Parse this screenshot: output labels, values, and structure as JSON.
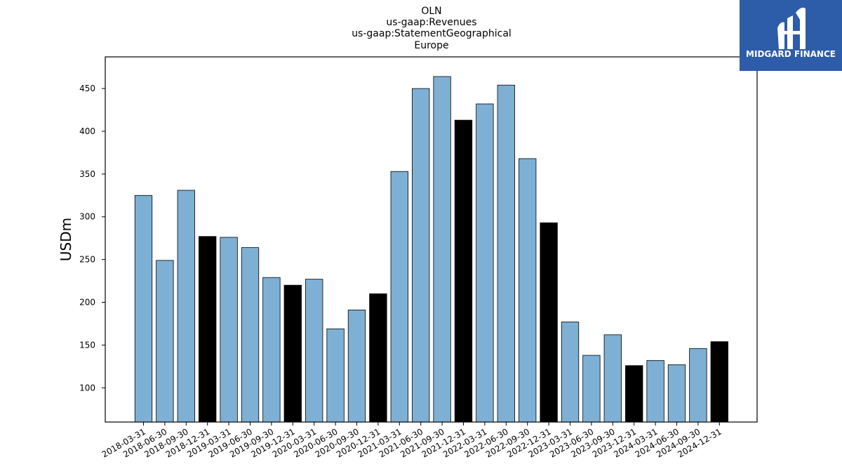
{
  "chart_data": {
    "type": "bar",
    "title_lines": [
      "OLN",
      "us-gaap:Revenues",
      "us-gaap:StatementGeographical",
      "Europe"
    ],
    "ylabel": "USDm",
    "xlabel": "",
    "ylim": [
      60,
      487
    ],
    "yticks": [
      100,
      150,
      200,
      250,
      300,
      350,
      400,
      450
    ],
    "categories": [
      "2018-03-31",
      "2018-06-30",
      "2018-09-30",
      "2018-12-31",
      "2019-03-31",
      "2019-06-30",
      "2019-09-30",
      "2019-12-31",
      "2020-03-31",
      "2020-06-30",
      "2020-09-30",
      "2020-12-31",
      "2021-03-31",
      "2021-06-30",
      "2021-09-30",
      "2021-12-31",
      "2022-03-31",
      "2022-06-30",
      "2022-09-30",
      "2022-12-31",
      "2023-03-31",
      "2023-06-30",
      "2023-09-30",
      "2023-12-31",
      "2024-03-31",
      "2024-06-30",
      "2024-09-30",
      "2024-12-31"
    ],
    "values": [
      325,
      249,
      331,
      277,
      276,
      264,
      229,
      220,
      227,
      169,
      191,
      210,
      353,
      450,
      464,
      413,
      432,
      454,
      368,
      293,
      177,
      138,
      162,
      126,
      132,
      127,
      146,
      154
    ],
    "colors": {
      "quarter": "#7eb0d5",
      "year_end": "#000000",
      "edge": "#000000"
    },
    "grid": false,
    "legend": "none"
  },
  "logo": {
    "text": "MIDGARD FINANCE",
    "background": "#2d5ca8"
  }
}
